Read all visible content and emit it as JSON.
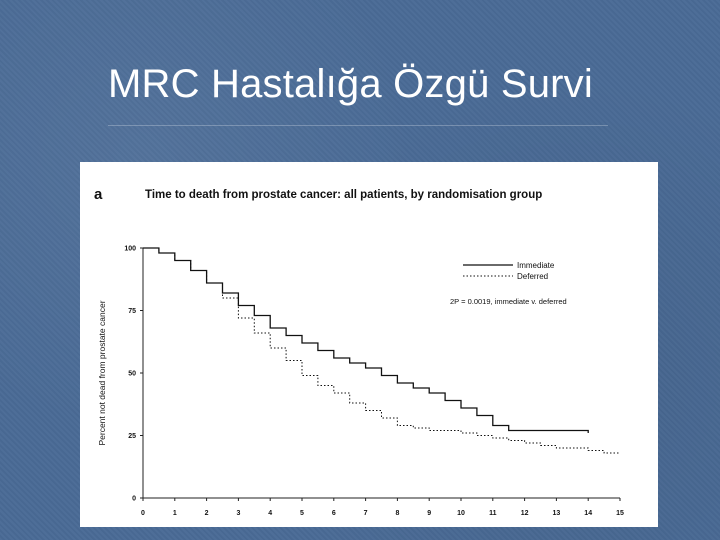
{
  "slide": {
    "title": "MRC Hastalığa Özgü Survi"
  },
  "chart_data": {
    "type": "line",
    "panel_letter": "a",
    "title": "Time to death from prostate cancer: all patients, by randomisation group",
    "xlabel": "",
    "ylabel": "Percent not dead from prostate cancer",
    "xlim": [
      0,
      15
    ],
    "ylim": [
      0,
      100
    ],
    "x_ticks": [
      "0",
      "1",
      "2",
      "3",
      "4",
      "5",
      "6",
      "7",
      "8",
      "9",
      "10",
      "11",
      "12",
      "13",
      "14",
      "15"
    ],
    "y_ticks": [
      "0",
      "25",
      "50",
      "75",
      "100"
    ],
    "legend_position": "top-right",
    "annotation": "2P = 0.0019, immediate v. deferred",
    "grid": false,
    "series": [
      {
        "name": "Immediate",
        "style": "solid",
        "x": [
          0,
          0.5,
          1,
          1.5,
          2,
          2.5,
          3,
          3.5,
          4,
          4.5,
          5,
          5.5,
          6,
          6.5,
          7,
          7.5,
          8,
          8.5,
          9,
          9.5,
          10,
          10.5,
          11,
          11.5,
          12,
          12.5,
          13,
          13.5,
          14
        ],
        "y": [
          100,
          98,
          95,
          91,
          86,
          82,
          77,
          73,
          68,
          65,
          62,
          59,
          56,
          54,
          52,
          49,
          46,
          44,
          42,
          39,
          36,
          33,
          29,
          27,
          27,
          27,
          27,
          27,
          26
        ]
      },
      {
        "name": "Deferred",
        "style": "dotted",
        "x": [
          0,
          0.5,
          1,
          1.5,
          2,
          2.5,
          3,
          3.5,
          4,
          4.5,
          5,
          5.5,
          6,
          6.5,
          7,
          7.5,
          8,
          8.5,
          9,
          9.5,
          10,
          10.5,
          11,
          11.5,
          12,
          12.5,
          13,
          13.5,
          14,
          14.5,
          15
        ],
        "y": [
          100,
          98,
          95,
          91,
          86,
          80,
          72,
          66,
          60,
          55,
          49,
          45,
          42,
          38,
          35,
          32,
          29,
          28,
          27,
          27,
          26,
          25,
          24,
          23,
          22,
          21,
          20,
          20,
          19,
          18,
          18
        ]
      }
    ]
  }
}
